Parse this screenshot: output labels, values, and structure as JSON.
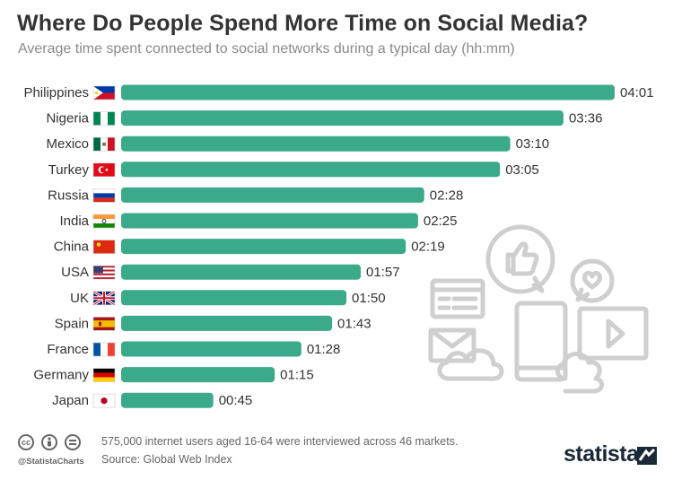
{
  "header": {
    "title": "Where Do People Spend More Time on Social Media?",
    "subtitle": "Average time spent connected to social networks during a typical day (hh:mm)"
  },
  "chart_data": {
    "type": "bar",
    "orientation": "horizontal",
    "unit": "hh:mm",
    "categories": [
      "Philippines",
      "Nigeria",
      "Mexico",
      "Turkey",
      "Russia",
      "India",
      "China",
      "USA",
      "UK",
      "Spain",
      "France",
      "Germany",
      "Japan"
    ],
    "values": [
      241,
      216,
      190,
      185,
      148,
      145,
      139,
      117,
      110,
      103,
      88,
      75,
      45
    ],
    "labels": [
      "04:01",
      "03:36",
      "03:10",
      "03:05",
      "02:28",
      "02:25",
      "02:19",
      "01:57",
      "01:50",
      "01:43",
      "01:28",
      "01:15",
      "00:45"
    ],
    "bar_color": "#3aaa8a",
    "grid": false,
    "legend": "none"
  },
  "footer": {
    "note": "575,000 internet users aged 16-64 were interviewed across 46 markets.",
    "source": "Source: Global Web Index",
    "handle": "@StatistaCharts",
    "license_icons": [
      "cc-icon",
      "by-icon",
      "nd-icon"
    ]
  },
  "brand": {
    "logo": "statista"
  },
  "colors": {
    "title": "#333333",
    "subtitle": "#8a8a8a",
    "bar": "#3aaa8a",
    "illustration": "#cfcfcf"
  }
}
